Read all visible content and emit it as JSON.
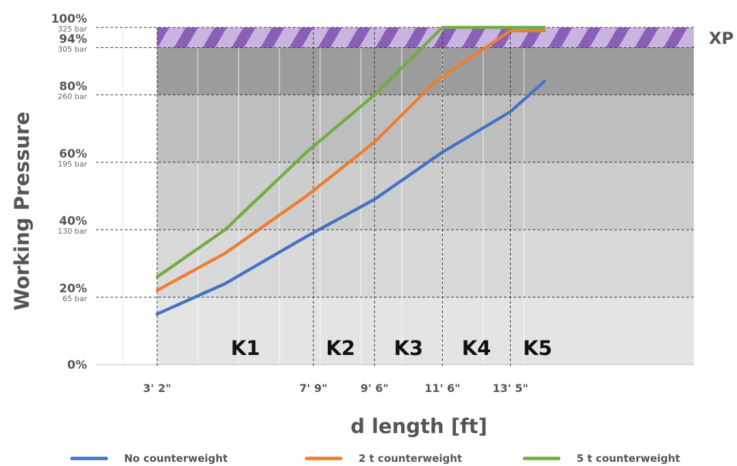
{
  "chart_data": {
    "type": "line",
    "xlabel": "d length [ft]",
    "ylabel": "Working Pressure",
    "x_range": [
      1.1,
      9.9
    ],
    "y_range": [
      0,
      100
    ],
    "y_ticks": [
      {
        "value": 0,
        "pct": "0%",
        "bar": ""
      },
      {
        "value": 20,
        "pct": "20%",
        "bar": "65 bar"
      },
      {
        "value": 40,
        "pct": "40%",
        "bar": "130 bar"
      },
      {
        "value": 60,
        "pct": "60%",
        "bar": "195 bar"
      },
      {
        "value": 80,
        "pct": "80%",
        "bar": "260 bar"
      },
      {
        "value": 94,
        "pct": "94%",
        "bar": "305 bar"
      },
      {
        "value": 100,
        "pct": "100%",
        "bar": "325 bar"
      }
    ],
    "x_ticks": [
      {
        "value": 2.0,
        "label": "3' 2\""
      },
      {
        "value": 4.3,
        "label": "7' 9\""
      },
      {
        "value": 5.2,
        "label": "9' 6\""
      },
      {
        "value": 6.2,
        "label": "11' 6\""
      },
      {
        "value": 7.2,
        "label": "13' 5\""
      }
    ],
    "zones": [
      {
        "label": "K1",
        "x_center": 3.3
      },
      {
        "label": "K2",
        "x_center": 4.7
      },
      {
        "label": "K3",
        "x_center": 5.7
      },
      {
        "label": "K4",
        "x_center": 6.7
      },
      {
        "label": "K5",
        "x_center": 7.6
      }
    ],
    "xp_band": {
      "label": "XP",
      "y_from": 94,
      "y_to": 100
    },
    "series": [
      {
        "name": "No counterweight",
        "color": "#4472c4",
        "points": [
          [
            2.0,
            15
          ],
          [
            3.0,
            24
          ],
          [
            4.2,
            38
          ],
          [
            5.2,
            49
          ],
          [
            6.2,
            63
          ],
          [
            7.2,
            75
          ],
          [
            7.7,
            84
          ]
        ]
      },
      {
        "name": "2 t counterweight",
        "color": "#ed7d31",
        "points": [
          [
            2.0,
            22
          ],
          [
            3.0,
            33
          ],
          [
            4.2,
            50
          ],
          [
            5.2,
            66
          ],
          [
            6.1,
            84
          ],
          [
            7.2,
            99
          ],
          [
            7.7,
            99
          ]
        ]
      },
      {
        "name": "5 t counterweight",
        "color": "#70ad47",
        "points": [
          [
            2.0,
            26
          ],
          [
            3.0,
            40
          ],
          [
            4.2,
            63
          ],
          [
            5.2,
            80
          ],
          [
            6.2,
            100
          ],
          [
            7.2,
            100
          ],
          [
            7.7,
            100
          ]
        ]
      }
    ]
  }
}
